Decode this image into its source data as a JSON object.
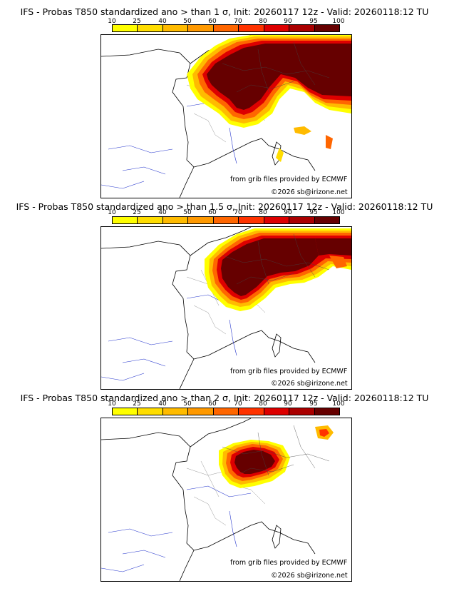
{
  "colorbar": {
    "ticks": [
      "10",
      "25",
      "40",
      "50",
      "60",
      "70",
      "80",
      "90",
      "95",
      "100"
    ],
    "colors": [
      "#ffff00",
      "#ffdd00",
      "#ffbb00",
      "#ff9900",
      "#ff6600",
      "#ff3300",
      "#dd0000",
      "#aa0000",
      "#660000"
    ]
  },
  "panels": [
    {
      "title": "IFS - Probas T850  standardized ano > than 1 σ, Init: 20260117 12z - Valid: 20260118:12 TU",
      "credit": "from grib files provided by ECMWF",
      "watermark": "©2026 sb@irizone.net"
    },
    {
      "title": "IFS - Probas T850  standardized ano > than 1.5 σ, Init: 20260117 12z - Valid: 20260118:12 TU",
      "credit": "from grib files provided by ECMWF",
      "watermark": "©2026 sb@irizone.net"
    },
    {
      "title": "IFS - Probas T850  standardized ano > than 2 σ, Init: 20260117 12z - Valid: 20260118:12 TU",
      "credit": "from grib files provided by ECMWF",
      "watermark": "©2026 sb@irizone.net"
    }
  ]
}
